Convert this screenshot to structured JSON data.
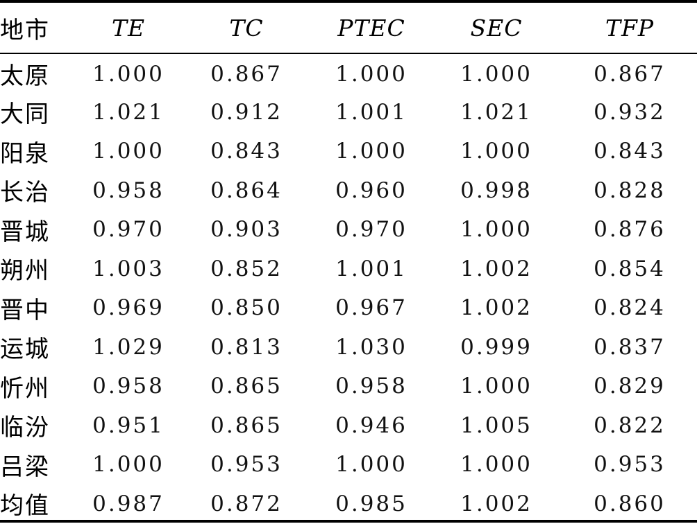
{
  "table": {
    "headers": [
      "地市",
      "TE",
      "TC",
      "PTEC",
      "SEC",
      "TFP"
    ],
    "rows": [
      [
        "太原",
        "1.000",
        "0.867",
        "1.000",
        "1.000",
        "0.867"
      ],
      [
        "大同",
        "1.021",
        "0.912",
        "1.001",
        "1.021",
        "0.932"
      ],
      [
        "阳泉",
        "1.000",
        "0.843",
        "1.000",
        "1.000",
        "0.843"
      ],
      [
        "长治",
        "0.958",
        "0.864",
        "0.960",
        "0.998",
        "0.828"
      ],
      [
        "晋城",
        "0.970",
        "0.903",
        "0.970",
        "1.000",
        "0.876"
      ],
      [
        "朔州",
        "1.003",
        "0.852",
        "1.001",
        "1.002",
        "0.854"
      ],
      [
        "晋中",
        "0.969",
        "0.850",
        "0.967",
        "1.002",
        "0.824"
      ],
      [
        "运城",
        "1.029",
        "0.813",
        "1.030",
        "0.999",
        "0.837"
      ],
      [
        "忻州",
        "0.958",
        "0.865",
        "0.958",
        "1.000",
        "0.829"
      ],
      [
        "临汾",
        "0.951",
        "0.865",
        "0.946",
        "1.005",
        "0.822"
      ],
      [
        "吕梁",
        "1.000",
        "0.953",
        "1.000",
        "1.000",
        "0.953"
      ],
      [
        "均值",
        "0.987",
        "0.872",
        "0.985",
        "1.002",
        "0.860"
      ]
    ]
  }
}
